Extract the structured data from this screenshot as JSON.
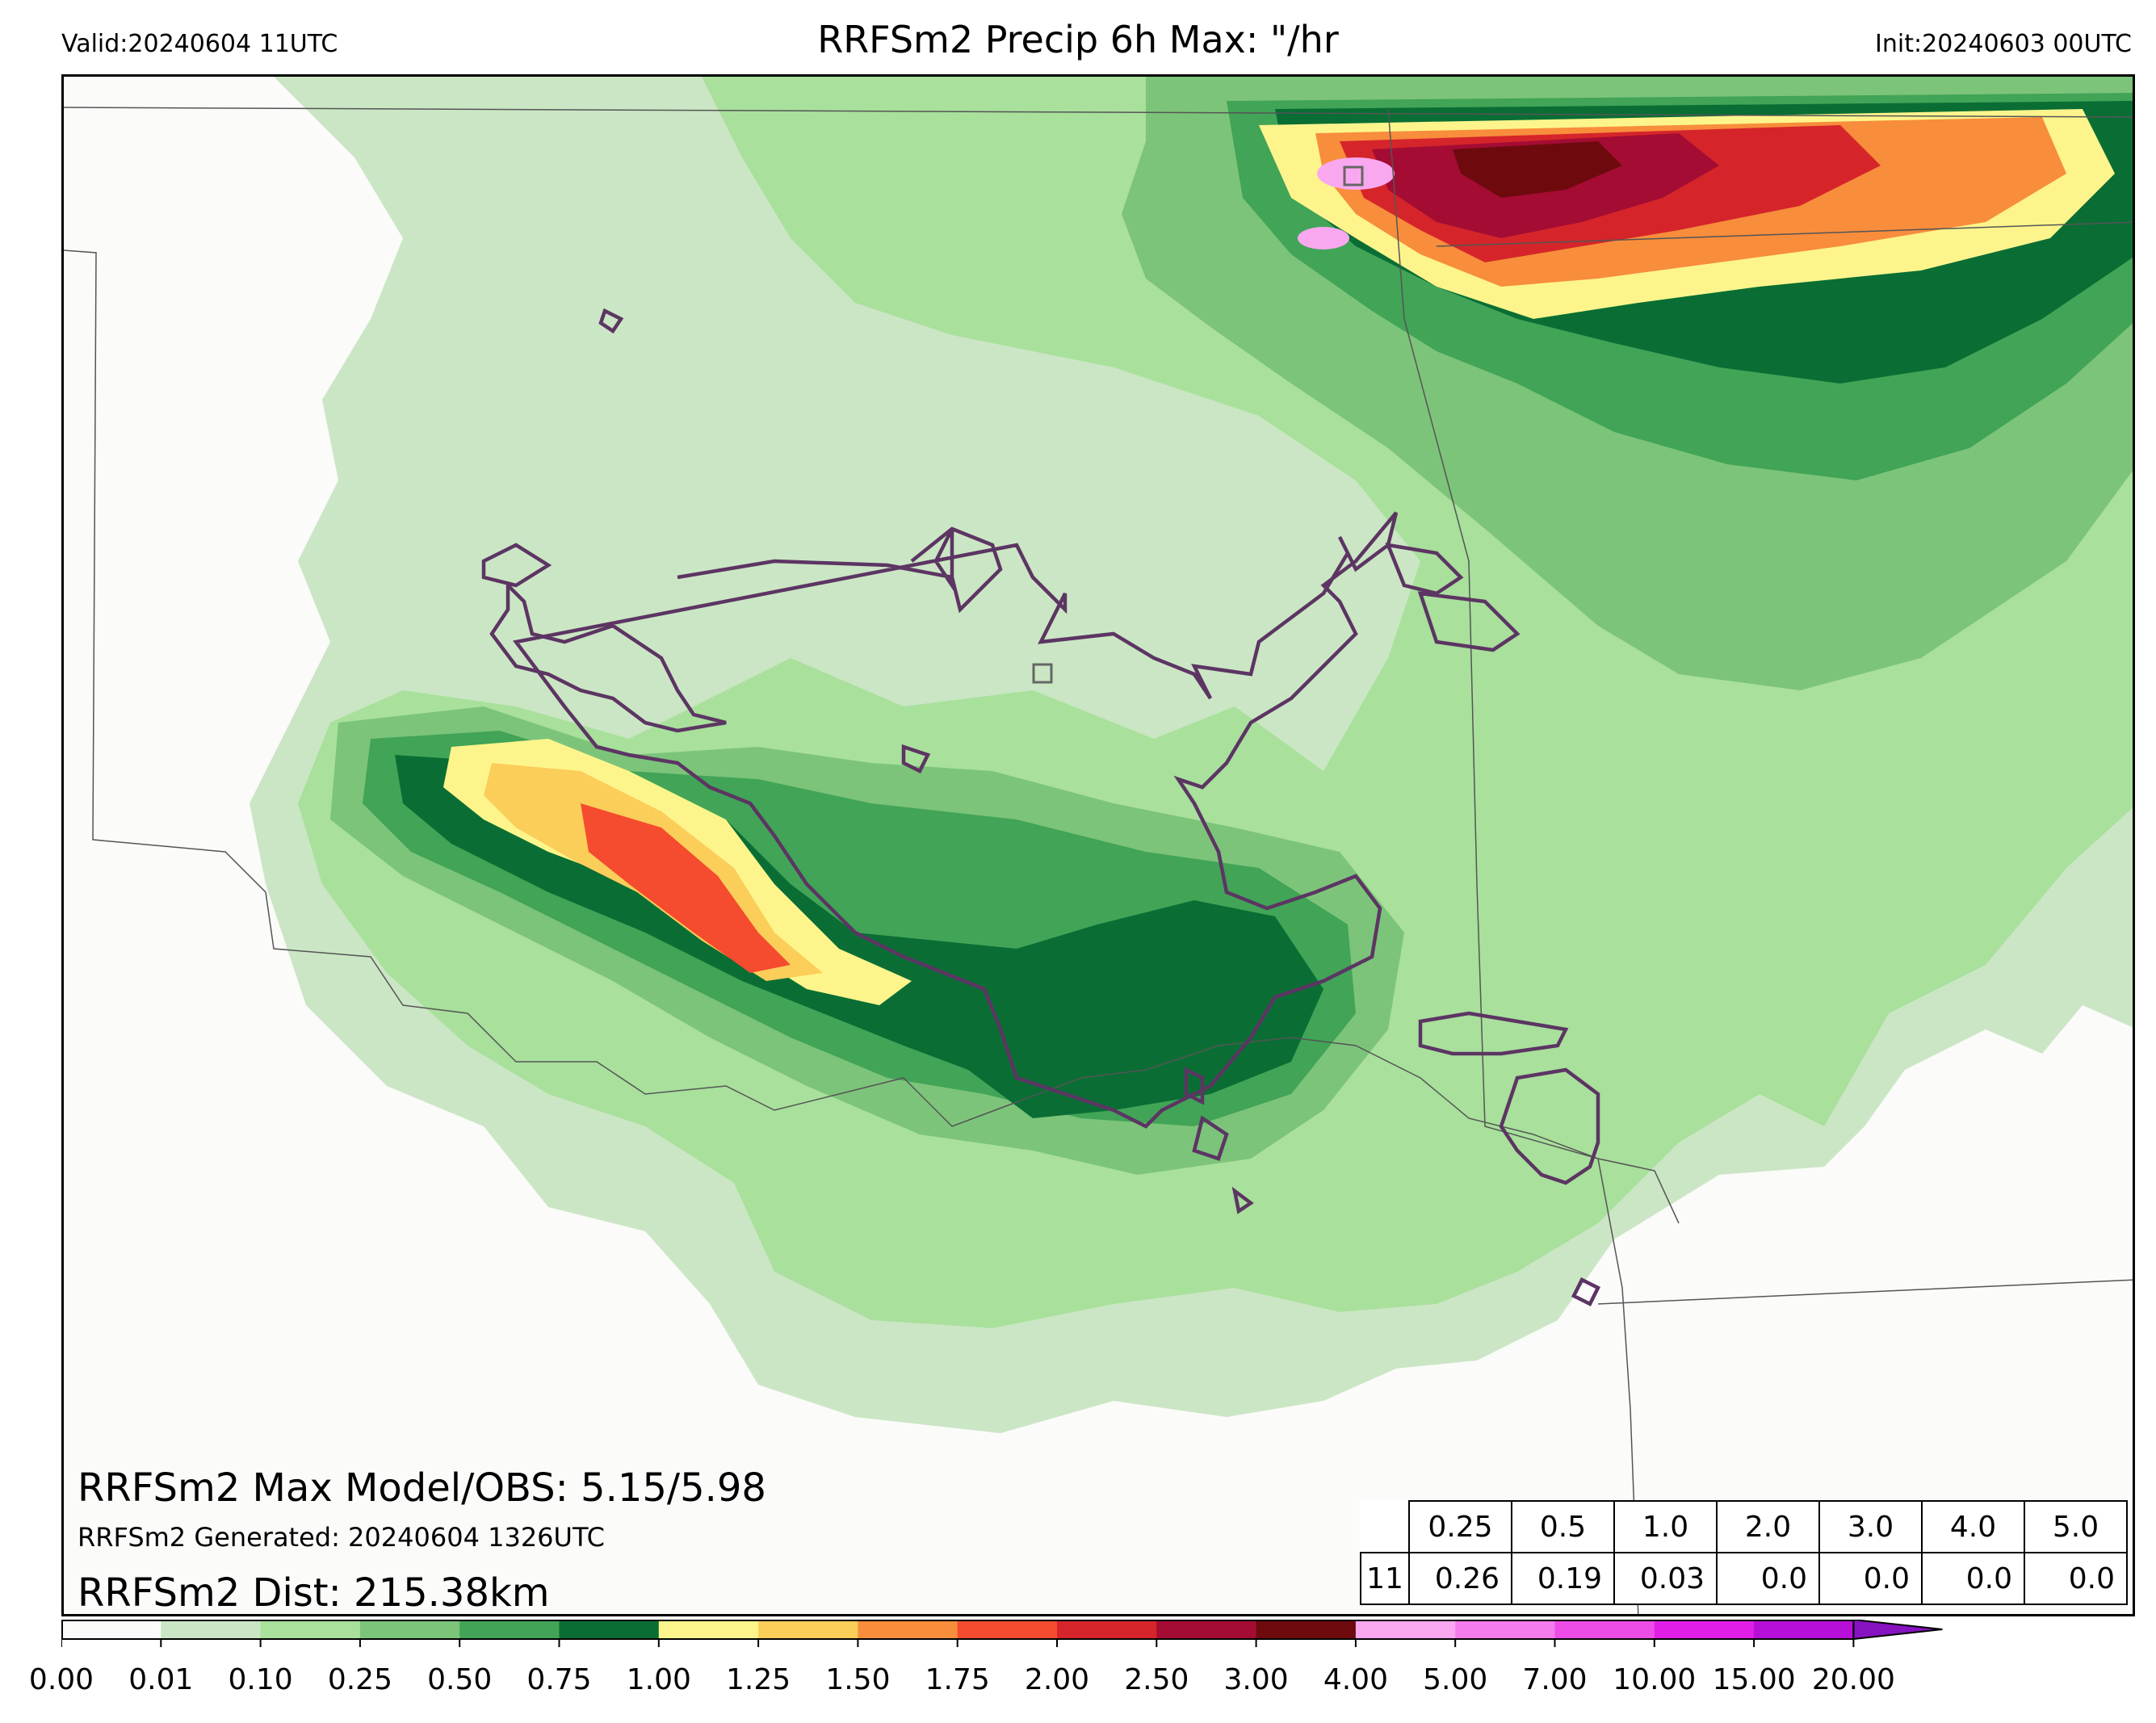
{
  "header": {
    "valid": "Valid:20240604 11UTC",
    "title": "RRFSm2 Precip 6h Max: \"/hr",
    "init": "Init:20240603 00UTC"
  },
  "annotations": {
    "max_model_obs": "RRFSm2 Max Model/OBS: 5.15/5.98",
    "generated": "RRFSm2 Generated: 20240604 1326UTC",
    "dist": "RRFSm2 Dist: 215.38km"
  },
  "stats_table": {
    "thresholds": [
      "0.25",
      "0.5",
      "1.0",
      "2.0",
      "3.0",
      "4.0",
      "5.0"
    ],
    "row_label": "11",
    "values": [
      "0.26",
      "0.19",
      "0.03",
      "0.0",
      "0.0",
      "0.0",
      "0.0"
    ]
  },
  "colorbar": {
    "ticks": [
      "0.00",
      "0.01",
      "0.10",
      "0.25",
      "0.50",
      "0.75",
      "1.00",
      "1.25",
      "1.50",
      "1.75",
      "2.00",
      "2.50",
      "3.00",
      "4.00",
      "5.00",
      "7.00",
      "10.00",
      "15.00",
      "20.00"
    ],
    "colors": [
      "#fbfbfa",
      "#cbe6c4",
      "#a8e09c",
      "#7cc47a",
      "#41a457",
      "#0a6e34",
      "#fdf58c",
      "#fbcd59",
      "#f88d3c",
      "#f54b2f",
      "#d5252a",
      "#a40c34",
      "#6e0a0d",
      "#f9a8f0",
      "#f57ced",
      "#ee4ce6",
      "#e01ee6",
      "#b80fd8",
      "#8712c0"
    ]
  },
  "colors": {
    "obs_contour": "#5c3563",
    "border": "#555555"
  }
}
